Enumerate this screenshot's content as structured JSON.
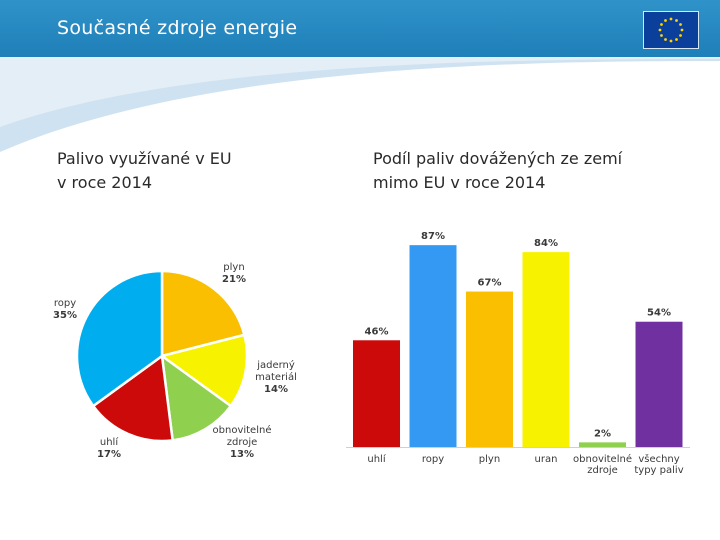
{
  "slide": {
    "title": "Současné zdroje energie",
    "left_subtitle": "Palivo využívané v EU\nv roce 2014",
    "right_subtitle": "Podíl paliv dovážených ze zemí\nmimo EU v roce 2014"
  },
  "chart_data": [
    {
      "type": "pie",
      "title": "",
      "slices": [
        {
          "name": "plyn",
          "label_lines": [
            "plyn"
          ],
          "value": 21,
          "value_label": "21%",
          "color": "#f9bf00"
        },
        {
          "name": "jaderný materiál",
          "label_lines": [
            "jaderný",
            "materiál"
          ],
          "value": 14,
          "value_label": "14%",
          "color": "#f7f200"
        },
        {
          "name": "obnovitelné zdroje",
          "label_lines": [
            "obnovitelné",
            "zdroje"
          ],
          "value": 13,
          "value_label": "13%",
          "color": "#8fd14f"
        },
        {
          "name": "uhlí",
          "label_lines": [
            "uhlí"
          ],
          "value": 17,
          "value_label": "17%",
          "color": "#cc0a0a"
        },
        {
          "name": "ropy",
          "label_lines": [
            "ropy"
          ],
          "value": 35,
          "value_label": "35%",
          "color": "#00aeef"
        }
      ]
    },
    {
      "type": "bar",
      "title": "",
      "xlabel": "",
      "ylabel": "",
      "ylim": [
        0,
        100
      ],
      "categories": [
        "uhlí",
        "ropy",
        "plyn",
        "uran",
        "obnovitelné zdroje",
        "všechny typy paliv"
      ],
      "category_lines": [
        [
          "uhlí"
        ],
        [
          "ropy"
        ],
        [
          "plyn"
        ],
        [
          "uran"
        ],
        [
          "obnovitelné",
          "zdroje"
        ],
        [
          "všechny",
          "typy paliv"
        ]
      ],
      "values": [
        46,
        87,
        67,
        84,
        2,
        54
      ],
      "value_labels": [
        "46%",
        "87%",
        "67%",
        "84%",
        "2%",
        "54%"
      ],
      "colors": [
        "#cc0a0a",
        "#3399f3",
        "#f9bf00",
        "#f7f200",
        "#8fd14f",
        "#7030a0"
      ]
    }
  ]
}
